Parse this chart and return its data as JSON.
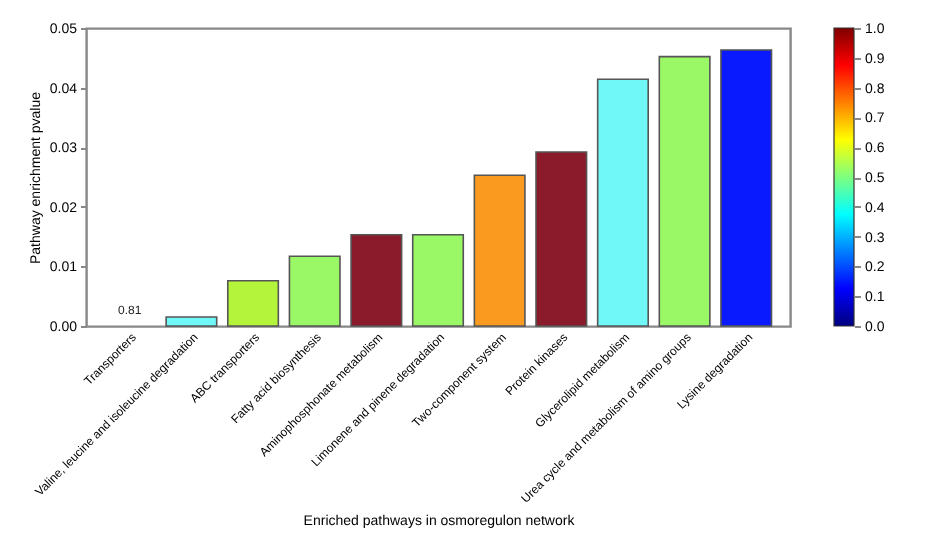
{
  "chart_data": {
    "type": "bar",
    "xlabel": "Enriched pathways in osmoregulon network",
    "ylabel": "Pathway enrichment pvalue",
    "categories": [
      "Transporters",
      "Valine, leucine and isoleucine degradation",
      "ABC transporters",
      "Fatty acid biosynthesis",
      "Aminophosphonate metabolism",
      "Limonene and pinene degradation",
      "Two-component system",
      "Protein kinases",
      "Glycerolipid metabolism",
      "Urea cycle and metabolism of amino groups",
      "Lysine degradation"
    ],
    "values": [
      null,
      0.0015,
      0.0076,
      0.0117,
      0.0153,
      0.0153,
      0.0253,
      0.0292,
      0.0414,
      0.0452,
      0.0463
    ],
    "colors": [
      null,
      "#70f7f7",
      "#b4f53c",
      "#9af766",
      "#8b1a2b",
      "#9af766",
      "#fa9a1e",
      "#8b1a2b",
      "#70f7f7",
      "#9af766",
      "#0a1aff"
    ],
    "ylim": [
      0,
      0.05
    ],
    "yticks": [
      {
        "value": 0,
        "label": "0.00"
      },
      0.01,
      0.02,
      0.03,
      0.04,
      0.05
    ],
    "clim": [
      0,
      1
    ],
    "cticks": [
      {
        "value": 0,
        "label": "0.0"
      },
      0.1,
      0.2,
      0.3,
      0.4,
      0.5,
      0.6,
      0.7,
      0.8,
      0.9,
      {
        "value": 1,
        "label": "1.0"
      }
    ],
    "annotations": [
      "0.81"
    ],
    "grid": false
  }
}
